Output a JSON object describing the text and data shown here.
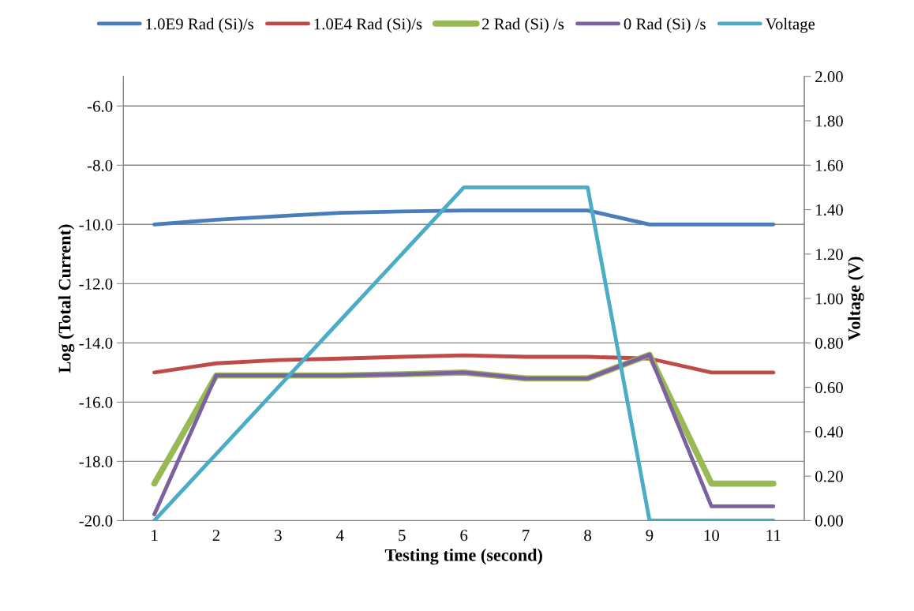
{
  "chart_data": {
    "type": "line",
    "xlabel": "Testing time (second)",
    "ylabel": "Log (Total Current)",
    "y2label": "Voltage (V)",
    "categories": [
      "1",
      "2",
      "3",
      "4",
      "5",
      "6",
      "7",
      "8",
      "9",
      "10",
      "11"
    ],
    "series": [
      {
        "name": "1.0E9 Rad (Si)/s",
        "color": "#4a7ebb",
        "values": [
          -10.0,
          -9.84,
          -9.72,
          -9.61,
          -9.56,
          -9.53,
          -9.53,
          -9.53,
          -10.0,
          -10.0,
          -10.0
        ]
      },
      {
        "name": "1.0E4 Rad (Si)/s",
        "color": "#be4b48",
        "values": [
          -15.0,
          -14.69,
          -14.58,
          -14.53,
          -14.47,
          -14.42,
          -14.47,
          -14.47,
          -14.53,
          -15.0,
          -15.0
        ]
      },
      {
        "name": "2 Rad (Si) /s",
        "color": "#98b954",
        "values": [
          -18.75,
          -15.1,
          -15.1,
          -15.1,
          -15.06,
          -15.0,
          -15.2,
          -15.2,
          -14.4,
          -18.75,
          -18.75
        ]
      },
      {
        "name": "0 Rad (Si) /s",
        "color": "#7d60a0",
        "values": [
          -19.79,
          -15.1,
          -15.1,
          -15.1,
          -15.06,
          -15.0,
          -15.2,
          -15.2,
          -14.4,
          -19.52,
          -19.52
        ]
      },
      {
        "name": "Voltage",
        "color": "#4bacc6",
        "axis": "y2",
        "values": [
          0,
          0.3,
          0.6,
          0.9,
          1.2,
          1.5,
          1.5,
          1.5,
          0,
          0,
          0
        ]
      }
    ],
    "ylim": [
      -20,
      -5
    ],
    "yticks": [
      {
        "value": -20,
        "label": "-20.0"
      },
      {
        "value": -18,
        "label": "-18.0"
      },
      {
        "value": -16,
        "label": "-16.0"
      },
      {
        "value": -14,
        "label": "-14.0"
      },
      {
        "value": -12,
        "label": "-12.0"
      },
      {
        "value": -10,
        "label": "-10.0"
      },
      {
        "value": -8,
        "label": "-8.0"
      },
      {
        "value": -6,
        "label": "-6.0"
      }
    ],
    "y2lim": [
      0,
      2
    ],
    "y2ticks": [
      {
        "value": 0,
        "label": "0.00"
      },
      {
        "value": 0.2,
        "label": "0.20"
      },
      {
        "value": 0.4,
        "label": "0.40"
      },
      {
        "value": 0.6,
        "label": "0.60"
      },
      {
        "value": 0.8,
        "label": "0.80"
      },
      {
        "value": 1.0,
        "label": "1.00"
      },
      {
        "value": 1.2,
        "label": "1.20"
      },
      {
        "value": 1.4,
        "label": "1.40"
      },
      {
        "value": 1.6,
        "label": "1.60"
      },
      {
        "value": 1.8,
        "label": "1.80"
      },
      {
        "value": 2.0,
        "label": "2.00"
      }
    ],
    "grid": "y",
    "legend": "top",
    "marker": "none",
    "line_style": "solid"
  }
}
